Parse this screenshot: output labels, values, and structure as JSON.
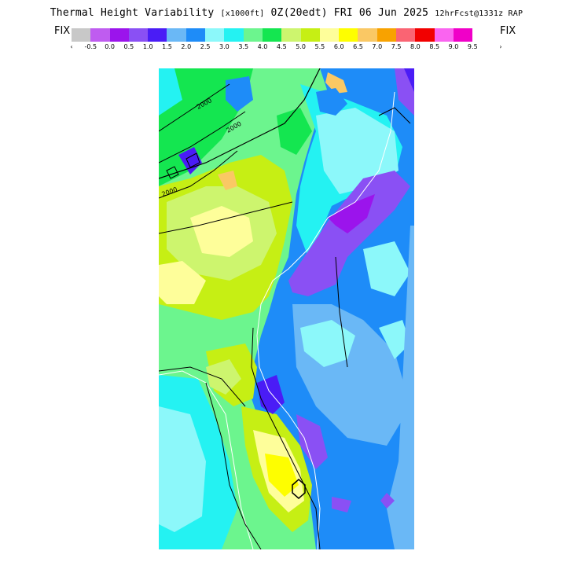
{
  "header": {
    "title_main": "Thermal Height Variability",
    "units": "[x1000ft]",
    "valid": "0Z(20edt) FRI 06 Jun 2025",
    "run": "12hrFcst@1331z RAP"
  },
  "legend": {
    "fix_left": "FIX",
    "fix_right": "FIX",
    "arrow_left": "‹",
    "arrow_right": "›",
    "swatch_colors": [
      "#c8c8c8",
      "#bf5cf0",
      "#9b14ec",
      "#8a50f4",
      "#4a1cf6",
      "#6ab8f6",
      "#1e8cf8",
      "#8cf8fa",
      "#24f2f2",
      "#6cf58e",
      "#14e650",
      "#cdf56e",
      "#c6ef14",
      "#fefe9a",
      "#fefe00",
      "#fac864",
      "#f8a200",
      "#fa6473",
      "#f20000",
      "#fa64f0",
      "#f000c8"
    ],
    "tick_labels": [
      "-0.5",
      "0.0",
      "0.5",
      "1.0",
      "1.5",
      "2.0",
      "2.5",
      "3.0",
      "3.5",
      "4.0",
      "4.5",
      "5.0",
      "5.5",
      "6.0",
      "6.5",
      "7.0",
      "7.5",
      "8.0",
      "8.5",
      "9.0",
      "9.5"
    ]
  },
  "map": {
    "contour_labels": [
      "2000",
      "2000",
      "2000"
    ]
  }
}
